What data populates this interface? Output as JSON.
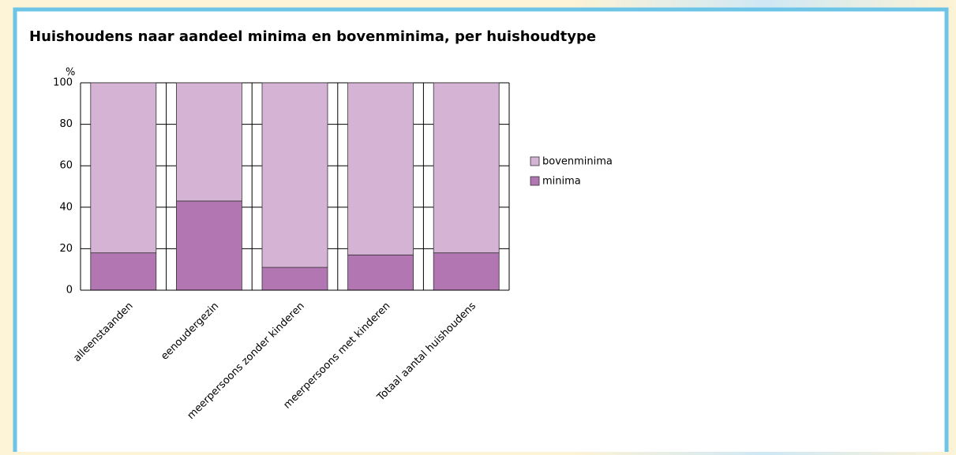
{
  "chart_data": {
    "type": "stacked_bar",
    "title": "Huishoudens naar aandeel minima en bovenminima, per huishoudtype",
    "y_label": "%",
    "categories": [
      "alleenstaanden",
      "eenoudergezin",
      "meerpersoons zonder kinderen",
      "meerpersoons met kinderen",
      "Totaal aantal huishoudens"
    ],
    "series": [
      {
        "name": "minima",
        "color": "#b277b2",
        "values": [
          18,
          43,
          11,
          17,
          18
        ]
      },
      {
        "name": "bovenminima",
        "color": "#d5b3d5",
        "values": [
          82,
          57,
          89,
          83,
          82
        ]
      }
    ],
    "ylim": [
      0,
      100
    ],
    "yticks": [
      0,
      20,
      40,
      60,
      80,
      100
    ],
    "grid": true,
    "legend": "right"
  }
}
